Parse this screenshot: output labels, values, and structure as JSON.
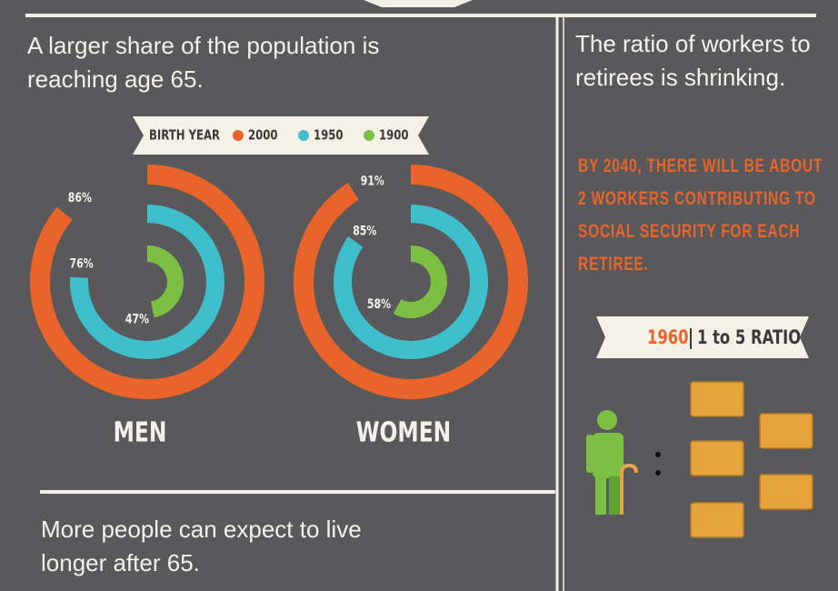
{
  "left_panel": {
    "heading": "A larger share of the population is reaching age 65."
  },
  "chart_data": {
    "type": "radial",
    "legend_title": "BIRTH YEAR",
    "categories": [
      "MEN",
      "WOMEN"
    ],
    "series": [
      {
        "name": "2000",
        "color": "#e8642a",
        "values": [
          86,
          91
        ],
        "value_labels": [
          "86%",
          "91%"
        ]
      },
      {
        "name": "1950",
        "color": "#3fbfcb",
        "values": [
          76,
          85
        ],
        "value_labels": [
          "76%",
          "85%"
        ]
      },
      {
        "name": "1900",
        "color": "#7cbf42",
        "values": [
          47,
          58
        ],
        "value_labels": [
          "47%",
          "58%"
        ]
      }
    ]
  },
  "right_panel": {
    "heading": "The ratio of workers to retirees is shrinking.",
    "highlight": "BY 2040, THERE WILL BE ABOUT 2 WORKERS CONTRIBUTING TO SOCIAL SECURITY FOR EACH RETIREE.",
    "banner": {
      "year": "1960",
      "ratio": "1 to 5 RATIO"
    }
  },
  "bottom_panel": {
    "heading": "More people can expect to live longer after 65."
  }
}
